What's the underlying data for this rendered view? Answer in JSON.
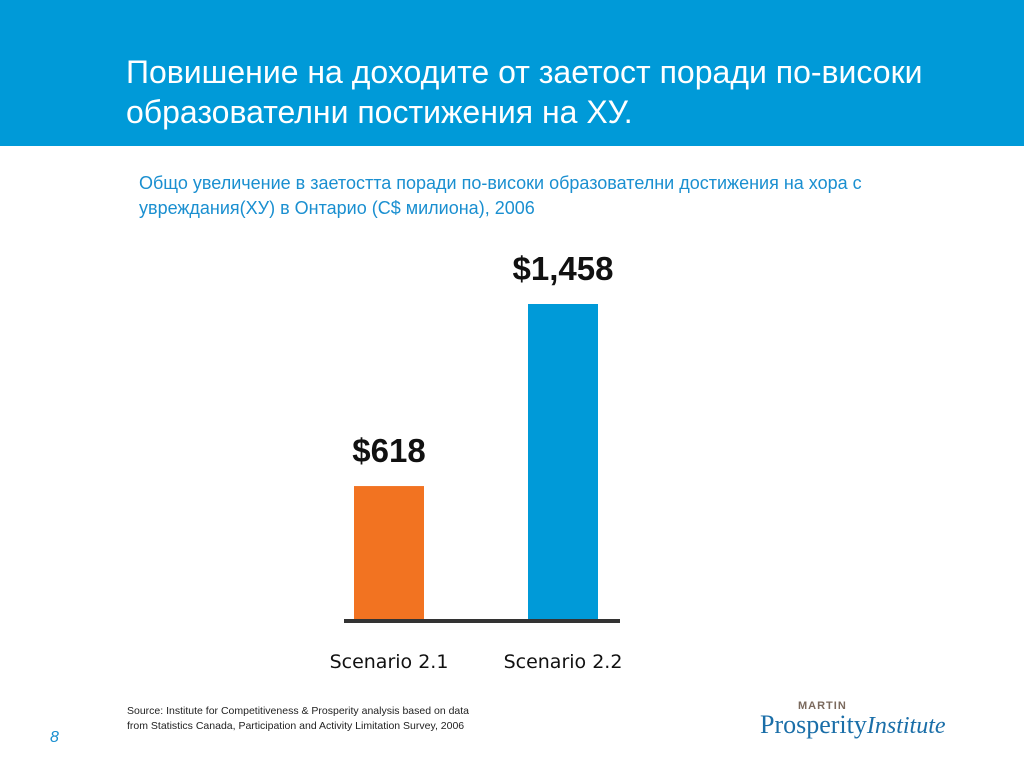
{
  "slide": {
    "title": "Повишение на доходите от заетост поради по-високи образователни постижения на ХУ.",
    "page_number": "8",
    "source": "Source: Institute for Competitiveness & Prosperity analysis based on data from Statistics Canada, Participation and Activity Limitation Survey, 2006"
  },
  "logo": {
    "top_text": "MARTIN",
    "prosperity": "Prosperity",
    "institute": "Institute"
  },
  "colors": {
    "header": "#009ad8",
    "title_text": "#ffffff",
    "chart_title": "#1a8fd0",
    "bar_1": "#f27321",
    "bar_2": "#009ad8",
    "baseline": "#333333"
  },
  "chart_data": {
    "type": "bar",
    "title": "Общо увеличение в заетостта поради по-високи образователни достижения на хора с увреждания(ХУ) в Онтарио (C$ милиона), 2006",
    "categories": [
      "Scenario 2.1",
      "Scenario 2.2"
    ],
    "values": [
      618,
      1458
    ],
    "value_labels": [
      "$618",
      "$1,458"
    ],
    "xlabel": "",
    "ylabel": "",
    "ylim": [
      0,
      1458
    ],
    "grid": false,
    "legend": "none"
  }
}
